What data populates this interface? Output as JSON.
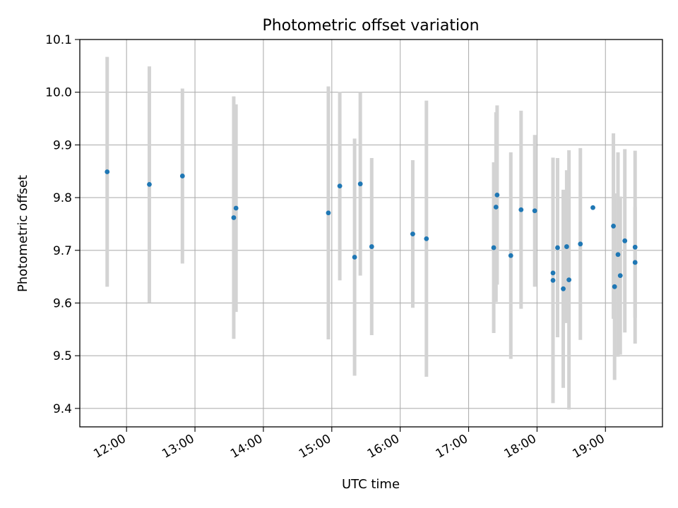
{
  "chart_data": {
    "type": "scatter",
    "title": "Photometric offset variation",
    "xlabel": "UTC time",
    "ylabel": "Photometric offset",
    "x_unit": "UTC hours",
    "xlim": [
      "11:19",
      "19:50"
    ],
    "ylim": [
      9.365,
      10.1
    ],
    "x_ticks": [
      "12:00",
      "13:00",
      "14:00",
      "15:00",
      "16:00",
      "17:00",
      "18:00",
      "19:00"
    ],
    "y_ticks": [
      "9.4",
      "9.5",
      "9.6",
      "9.7",
      "9.8",
      "9.9",
      "10.0",
      "10.1"
    ],
    "grid": true,
    "colors": {
      "point": "#1f77b4",
      "errorbar": "#d3d3d3",
      "grid": "#b0b0b0"
    },
    "points": [
      {
        "x": "11:43",
        "y": 9.849,
        "yerr": 0.218
      },
      {
        "x": "12:20",
        "y": 9.825,
        "yerr": 0.224
      },
      {
        "x": "12:49",
        "y": 9.841,
        "yerr": 0.166
      },
      {
        "x": "13:34",
        "y": 9.762,
        "yerr": 0.23
      },
      {
        "x": "13:36",
        "y": 9.78,
        "yerr": 0.197
      },
      {
        "x": "14:57",
        "y": 9.771,
        "yerr": 0.24
      },
      {
        "x": "15:07",
        "y": 9.822,
        "yerr": 0.179
      },
      {
        "x": "15:20",
        "y": 9.687,
        "yerr": 0.225
      },
      {
        "x": "15:25",
        "y": 9.826,
        "yerr": 0.174
      },
      {
        "x": "15:35",
        "y": 9.707,
        "yerr": 0.168
      },
      {
        "x": "16:11",
        "y": 9.731,
        "yerr": 0.14
      },
      {
        "x": "16:23",
        "y": 9.722,
        "yerr": 0.262
      },
      {
        "x": "17:22",
        "y": 9.705,
        "yerr": 0.162
      },
      {
        "x": "17:24",
        "y": 9.782,
        "yerr": 0.18
      },
      {
        "x": "17:25",
        "y": 9.805,
        "yerr": 0.17
      },
      {
        "x": "17:37",
        "y": 9.69,
        "yerr": 0.196
      },
      {
        "x": "17:46",
        "y": 9.777,
        "yerr": 0.188
      },
      {
        "x": "17:58",
        "y": 9.775,
        "yerr": 0.144
      },
      {
        "x": "18:14",
        "y": 9.643,
        "yerr": 0.233
      },
      {
        "x": "18:14",
        "y": 9.657,
        "yerr": 0.218
      },
      {
        "x": "18:18",
        "y": 9.705,
        "yerr": 0.17
      },
      {
        "x": "18:23",
        "y": 9.627,
        "yerr": 0.188
      },
      {
        "x": "18:26",
        "y": 9.707,
        "yerr": 0.145
      },
      {
        "x": "18:28",
        "y": 9.644,
        "yerr": 0.246
      },
      {
        "x": "18:38",
        "y": 9.712,
        "yerr": 0.182
      },
      {
        "x": "18:49",
        "y": 9.781,
        "yerr": 0.0
      },
      {
        "x": "19:07",
        "y": 9.746,
        "yerr": 0.176
      },
      {
        "x": "19:08",
        "y": 9.631,
        "yerr": 0.177
      },
      {
        "x": "19:11",
        "y": 9.692,
        "yerr": 0.194
      },
      {
        "x": "19:13",
        "y": 9.652,
        "yerr": 0.15
      },
      {
        "x": "19:17",
        "y": 9.718,
        "yerr": 0.174
      },
      {
        "x": "19:26",
        "y": 9.677,
        "yerr": 0.105
      },
      {
        "x": "19:26",
        "y": 9.706,
        "yerr": 0.183
      }
    ]
  }
}
